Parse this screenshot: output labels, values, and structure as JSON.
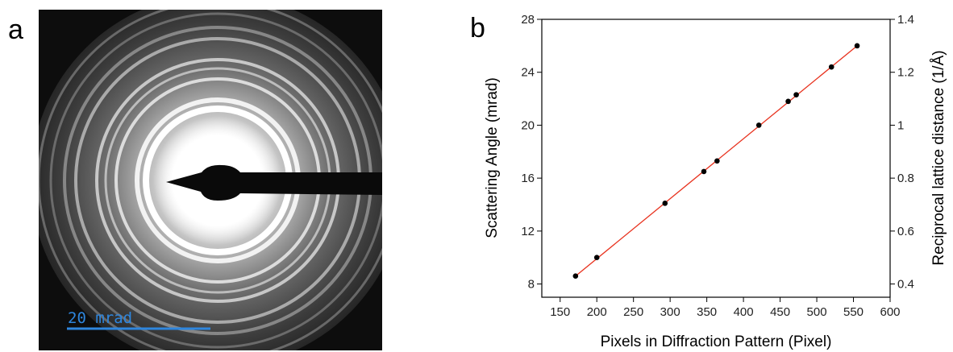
{
  "panel_a": {
    "letter": "a",
    "scale_bar_label": "20 mrad",
    "scale_bar_color": "#2e86de"
  },
  "panel_b": {
    "letter": "b"
  },
  "chart_data": {
    "type": "scatter",
    "title": "",
    "xlabel": "Pixels in Diffraction Pattern (Pixel)",
    "ylabel": "Scattering Angle (mrad)",
    "y2label": "Reciprocal lattice distance (1/Å)",
    "xlim": [
      125,
      600
    ],
    "ylim": [
      7,
      28
    ],
    "y2lim": [
      0.35,
      1.4
    ],
    "xticks": [
      150,
      200,
      250,
      300,
      350,
      400,
      450,
      500,
      550,
      600
    ],
    "yticks": [
      8,
      12,
      16,
      20,
      24,
      28
    ],
    "y2ticks": [
      0.4,
      0.6,
      0.8,
      1,
      1.2,
      1.4
    ],
    "grid": false,
    "series": [
      {
        "marker_color": "#000000",
        "x": [
          171,
          200,
          293,
          346,
          364,
          421,
          461,
          472,
          520,
          555
        ],
        "y": [
          8.6,
          10.0,
          14.1,
          16.5,
          17.3,
          20.0,
          21.8,
          22.3,
          24.4,
          26.0
        ]
      }
    ],
    "fit_line": {
      "color": "#e8321e",
      "x": [
        171,
        555
      ],
      "y": [
        8.6,
        26.0
      ]
    }
  }
}
